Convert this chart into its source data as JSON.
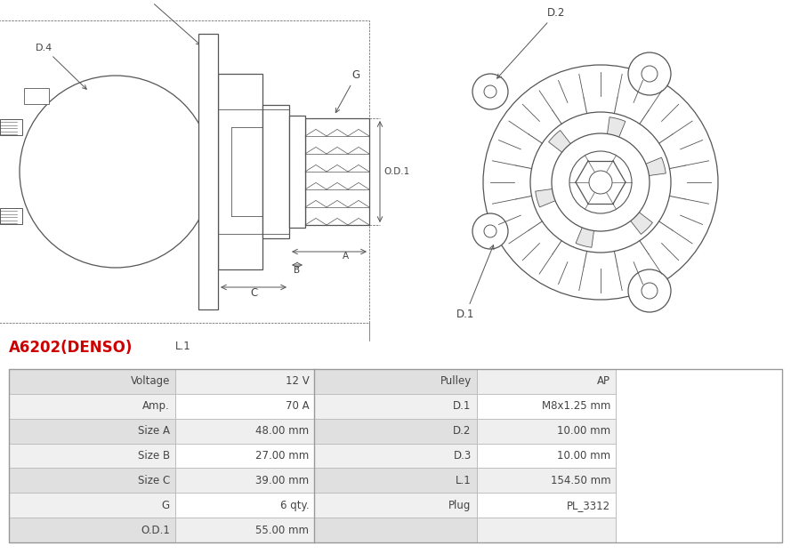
{
  "title": "A6202(DENSO)",
  "title_color": "#cc0000",
  "background_color": "#ffffff",
  "table_rows": [
    [
      "Voltage",
      "12 V",
      "Pulley",
      "AP"
    ],
    [
      "Amp.",
      "70 A",
      "D.1",
      "M8x1.25 mm"
    ],
    [
      "Size A",
      "48.00 mm",
      "D.2",
      "10.00 mm"
    ],
    [
      "Size B",
      "27.00 mm",
      "D.3",
      "10.00 mm"
    ],
    [
      "Size C",
      "39.00 mm",
      "L.1",
      "154.50 mm"
    ],
    [
      "G",
      "6 qty.",
      "Plug",
      "PL_3312"
    ],
    [
      "O.D.1",
      "55.00 mm",
      "",
      ""
    ]
  ],
  "line_color": "#555555",
  "text_color": "#444444",
  "title_fontsize": 12,
  "row_bg_odd": "#efefef",
  "row_bg_even": "#ffffff",
  "label_bg_odd": "#e0e0e0",
  "label_bg_even": "#f0f0f0"
}
